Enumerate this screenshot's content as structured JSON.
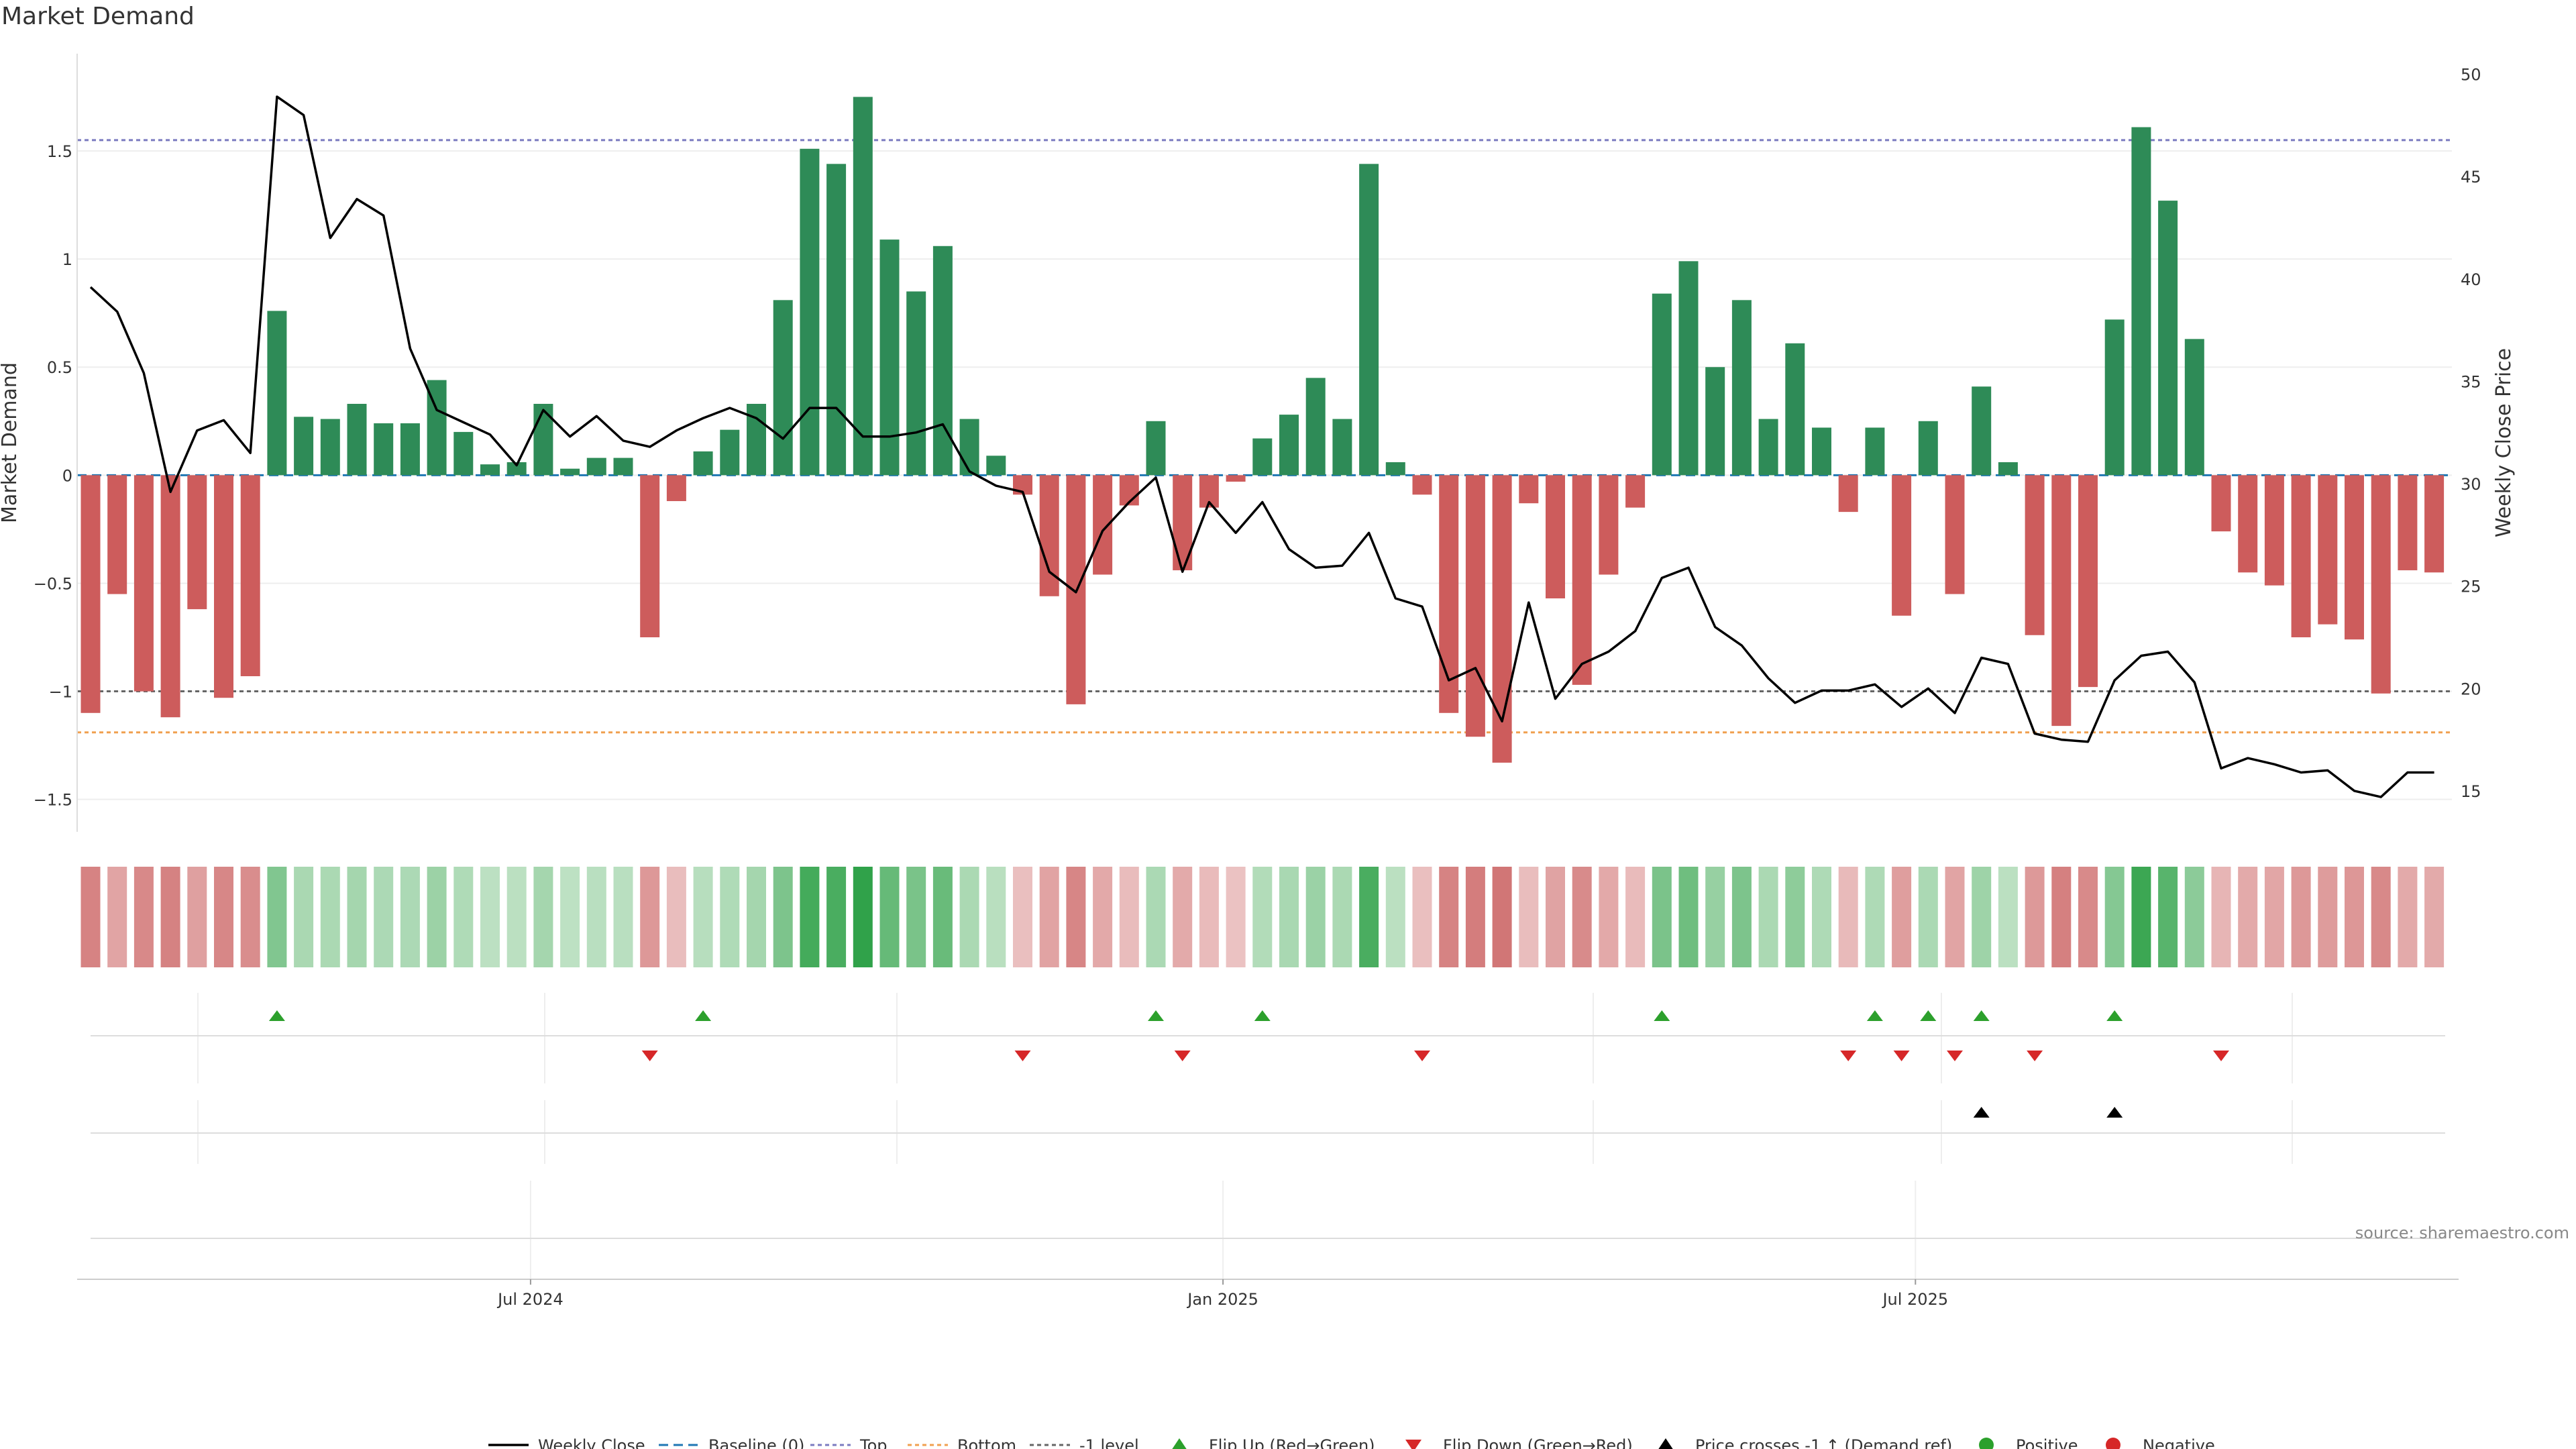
{
  "chart_data": {
    "type": "bar",
    "title": "Market Demand",
    "ylabel": "Market Demand",
    "y2label": "Weekly Close Price",
    "ylim": [
      -1.65,
      1.95
    ],
    "y2lim": [
      13,
      51
    ],
    "yticks": [
      -1.5,
      -1,
      -0.5,
      0,
      0.5,
      1,
      1.5
    ],
    "ytick_labels": [
      "−1.5",
      "−1",
      "−0.5",
      "0",
      "0.5",
      "1",
      "1.5"
    ],
    "y2ticks": [
      15,
      20,
      25,
      30,
      35,
      40,
      45,
      50
    ],
    "y2tick_labels": [
      "15",
      "20",
      "25",
      "30",
      "35",
      "40",
      "45",
      "50"
    ],
    "xticks": [
      {
        "index": 17,
        "label": "Jul 2024"
      },
      {
        "index": 43,
        "label": "Jan 2025"
      },
      {
        "index": 69,
        "label": "Jul 2025"
      }
    ],
    "levels": {
      "top": 1.55,
      "bottom": -1.19,
      "minus_one": -1.0,
      "baseline": 0
    },
    "demand": [
      -1.1,
      -0.55,
      -1.0,
      -1.12,
      -0.62,
      -1.03,
      -0.93,
      0.76,
      0.27,
      0.26,
      0.33,
      0.24,
      0.24,
      0.44,
      0.2,
      0.05,
      0.06,
      0.33,
      0.03,
      0.08,
      0.08,
      -0.75,
      -0.12,
      0.11,
      0.21,
      0.33,
      0.81,
      1.51,
      1.44,
      1.75,
      1.09,
      0.85,
      1.06,
      0.26,
      0.09,
      -0.09,
      -0.56,
      -1.06,
      -0.46,
      -0.14,
      0.25,
      -0.44,
      -0.15,
      -0.03,
      0.17,
      0.28,
      0.45,
      0.26,
      1.44,
      0.06,
      -0.09,
      -1.1,
      -1.21,
      -1.33,
      -0.13,
      -0.57,
      -0.97,
      -0.46,
      -0.15,
      0.84,
      0.99,
      0.5,
      0.81,
      0.26,
      0.61,
      0.22,
      -0.17,
      0.22,
      -0.65,
      0.25,
      -0.55,
      0.41,
      0.06,
      -0.74,
      -1.16,
      -0.98,
      0.72,
      1.61,
      1.27,
      0.63,
      -0.26,
      -0.45,
      -0.51,
      -0.75,
      -0.69,
      -0.76,
      -1.01,
      -0.44,
      -0.45
    ],
    "weekly_close": [
      39.6,
      38.4,
      35.4,
      29.6,
      32.6,
      33.1,
      31.5,
      48.9,
      48.0,
      42.0,
      43.9,
      43.1,
      36.6,
      33.6,
      33.0,
      32.4,
      30.9,
      33.6,
      32.3,
      33.3,
      32.1,
      31.8,
      32.6,
      33.2,
      33.7,
      33.2,
      32.2,
      33.7,
      33.7,
      32.3,
      32.3,
      32.5,
      32.9,
      30.6,
      29.9,
      29.6,
      25.7,
      24.7,
      27.7,
      29.1,
      30.3,
      25.7,
      29.1,
      27.6,
      29.1,
      26.8,
      25.9,
      26.0,
      27.6,
      24.4,
      24.0,
      20.4,
      21.0,
      18.4,
      24.2,
      19.5,
      21.2,
      21.8,
      22.8,
      25.4,
      25.9,
      23.0,
      22.1,
      20.5,
      19.3,
      19.9,
      19.9,
      20.2,
      19.1,
      20.0,
      18.8,
      21.5,
      21.2,
      17.8,
      17.5,
      17.4,
      20.4,
      21.6,
      21.8,
      20.3,
      16.1,
      16.6,
      16.3,
      15.9,
      16.0,
      15.0,
      14.7,
      15.9,
      15.9
    ],
    "flip_up_indices": [
      7,
      23,
      40,
      44,
      59,
      67,
      69,
      71,
      76
    ],
    "flip_down_indices": [
      21,
      35,
      41,
      50,
      66,
      68,
      70,
      73,
      80
    ],
    "price_cross_indices": [
      71,
      76
    ],
    "colors": {
      "positive_bar": "#2e8b57",
      "negative_bar": "#cd5c5c",
      "close_line": "#000000",
      "baseline": "#1f77b4",
      "top_line": "#7b7bc0",
      "bottom_line": "#f0a050",
      "minus_one_line": "#666666",
      "flip_up": "#2ca02c",
      "flip_down": "#d62728",
      "cross_marker": "#000000",
      "positive_dot": "#2ca02c",
      "negative_dot": "#d62728"
    },
    "legend": [
      {
        "key": "close",
        "label": "Weekly Close"
      },
      {
        "key": "baseline",
        "label": "Baseline (0)"
      },
      {
        "key": "top",
        "label": "Top"
      },
      {
        "key": "bottom",
        "label": "Bottom"
      },
      {
        "key": "minus1",
        "label": "-1 level"
      },
      {
        "key": "flipup",
        "label": "Flip Up (Red→Green)"
      },
      {
        "key": "flipdown",
        "label": "Flip Down (Green→Red)"
      },
      {
        "key": "cross",
        "label": "Price crosses -1 ↑ (Demand ref)"
      },
      {
        "key": "pos",
        "label": "Positive"
      },
      {
        "key": "neg",
        "label": "Negative"
      }
    ]
  },
  "source_text": "source: sharemaestro.com"
}
